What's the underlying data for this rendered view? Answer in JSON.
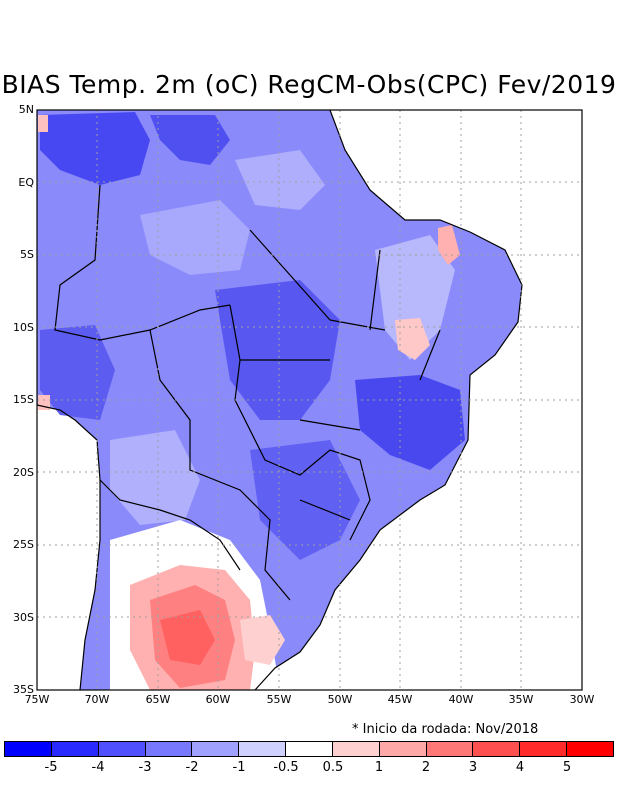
{
  "title": "BIAS Temp. 2m (oC) RegCM-Obs(CPC) Fev/2019",
  "note": "* Inicio da rodada: Nov/2018",
  "lat_labels": [
    "5N",
    "EQ",
    "5S",
    "10S",
    "15S",
    "20S",
    "25S",
    "30S",
    "35S"
  ],
  "lon_labels": [
    "75W",
    "70W",
    "65W",
    "60W",
    "55W",
    "50W",
    "45W",
    "40W",
    "35W",
    "30W"
  ],
  "colorbar": {
    "colors": [
      "#0000ff",
      "#2a2aff",
      "#5050ff",
      "#7878ff",
      "#a0a0ff",
      "#d0d0ff",
      "#ffffff",
      "#ffd0d0",
      "#ffa8a8",
      "#ff7878",
      "#ff5050",
      "#ff2a2a",
      "#ff0000"
    ],
    "labels": [
      "-5",
      "-4",
      "-3",
      "-2",
      "-1",
      "-0.5",
      "0.5",
      "1",
      "2",
      "3",
      "4",
      "5"
    ]
  },
  "map": {
    "land_color": "#8a8afb",
    "ocean_color": "#ffffff"
  }
}
